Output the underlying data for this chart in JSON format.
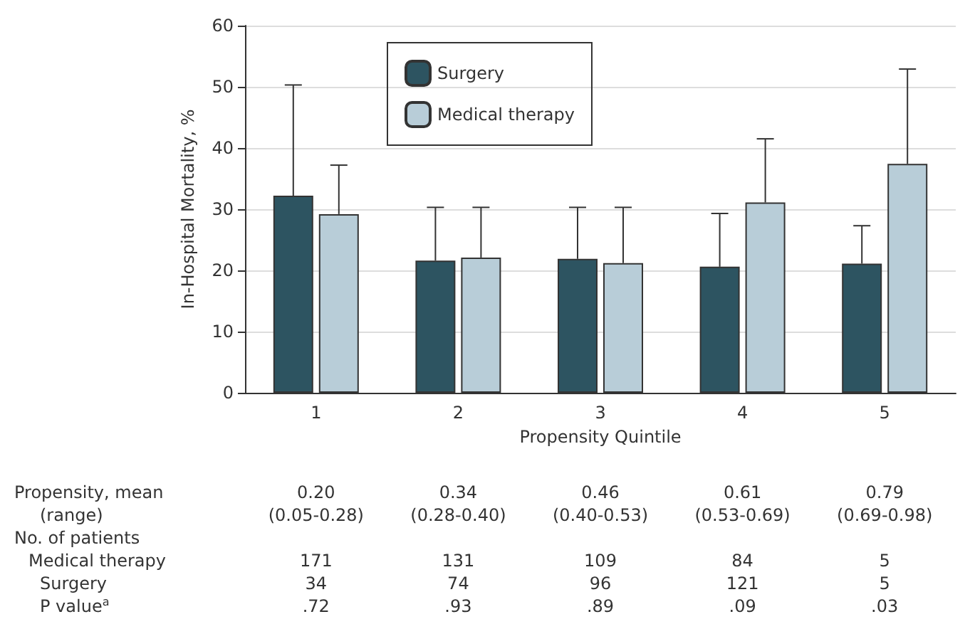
{
  "chart_data": {
    "type": "bar",
    "xlabel": "Propensity Quintile",
    "ylabel": "In-Hospital Mortality, %",
    "categories": [
      "1",
      "2",
      "3",
      "4",
      "5"
    ],
    "series": [
      {
        "name": "Surgery",
        "color": "#2d5461",
        "values": [
          32.2,
          21.6,
          21.9,
          20.6,
          21.1
        ],
        "errors": [
          [
            32.2,
            50.3
          ],
          [
            21.6,
            30.3
          ],
          [
            21.9,
            30.3
          ],
          [
            20.6,
            29.3
          ],
          [
            21.1,
            27.3
          ]
        ]
      },
      {
        "name": "Medical therapy",
        "color": "#b8cdd8",
        "values": [
          29.2,
          22.1,
          21.2,
          31.1,
          37.4
        ],
        "errors": [
          [
            29.2,
            37.2
          ],
          [
            22.1,
            30.3
          ],
          [
            21.2,
            30.3
          ],
          [
            31.1,
            41.5
          ],
          [
            37.4,
            52.9
          ]
        ]
      }
    ],
    "ylim": [
      0,
      60
    ],
    "yticks": [
      0,
      10,
      20,
      30,
      40,
      50,
      60
    ],
    "grid": "y",
    "legend": "top left",
    "annotations": [
      "Propensity, mean",
      "0.20",
      "0.34",
      "0.46",
      "0.61",
      "0.79",
      "(range)",
      "(0.05-0.28)",
      "(0.28-0.40)",
      "(0.40-0.53)",
      "(0.53-0.69)",
      "(0.69-0.98)",
      "No. of patients",
      "Medical therapy",
      "171",
      "131",
      "109",
      "84",
      "5",
      "Surgery",
      "34",
      "74",
      "96",
      "121",
      "5",
      "P value$^{a}$",
      ".72",
      ".93",
      ".89",
      ".09",
      ".03"
    ]
  }
}
